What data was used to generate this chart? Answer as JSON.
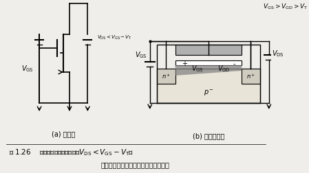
{
  "bg_color": "#f0eeea",
  "title_line1": "图 1.26    非饱和区中沟道的厚度（$V_{\\mathrm{DS}}<V_{\\mathrm{GS}}-V_{\\mathrm{T}}$）",
  "title_line2": "（漏区附近的沟道厚度比源区附近薄）",
  "label_a": "(a) 符号图",
  "label_b": "(b) 剪面示意图",
  "VGS": "$V_{\\mathrm{GS}}$",
  "VDS_label": "$V_{\\mathrm{DS}}<V_{\\mathrm{GS}}-V_{\\mathrm{T}}$",
  "VGS_top": "$V_{\\mathrm{GS}}$",
  "VGD": "$V_{\\mathrm{GD}}$",
  "VDS_right": "$V_{\\mathrm{DS}}$",
  "condition": "$V_{\\mathrm{GS}}>V_{\\mathrm{GD}}>V_{\\mathrm{T}}$",
  "nplus": "n$^+$",
  "pminus": "p$^-$"
}
